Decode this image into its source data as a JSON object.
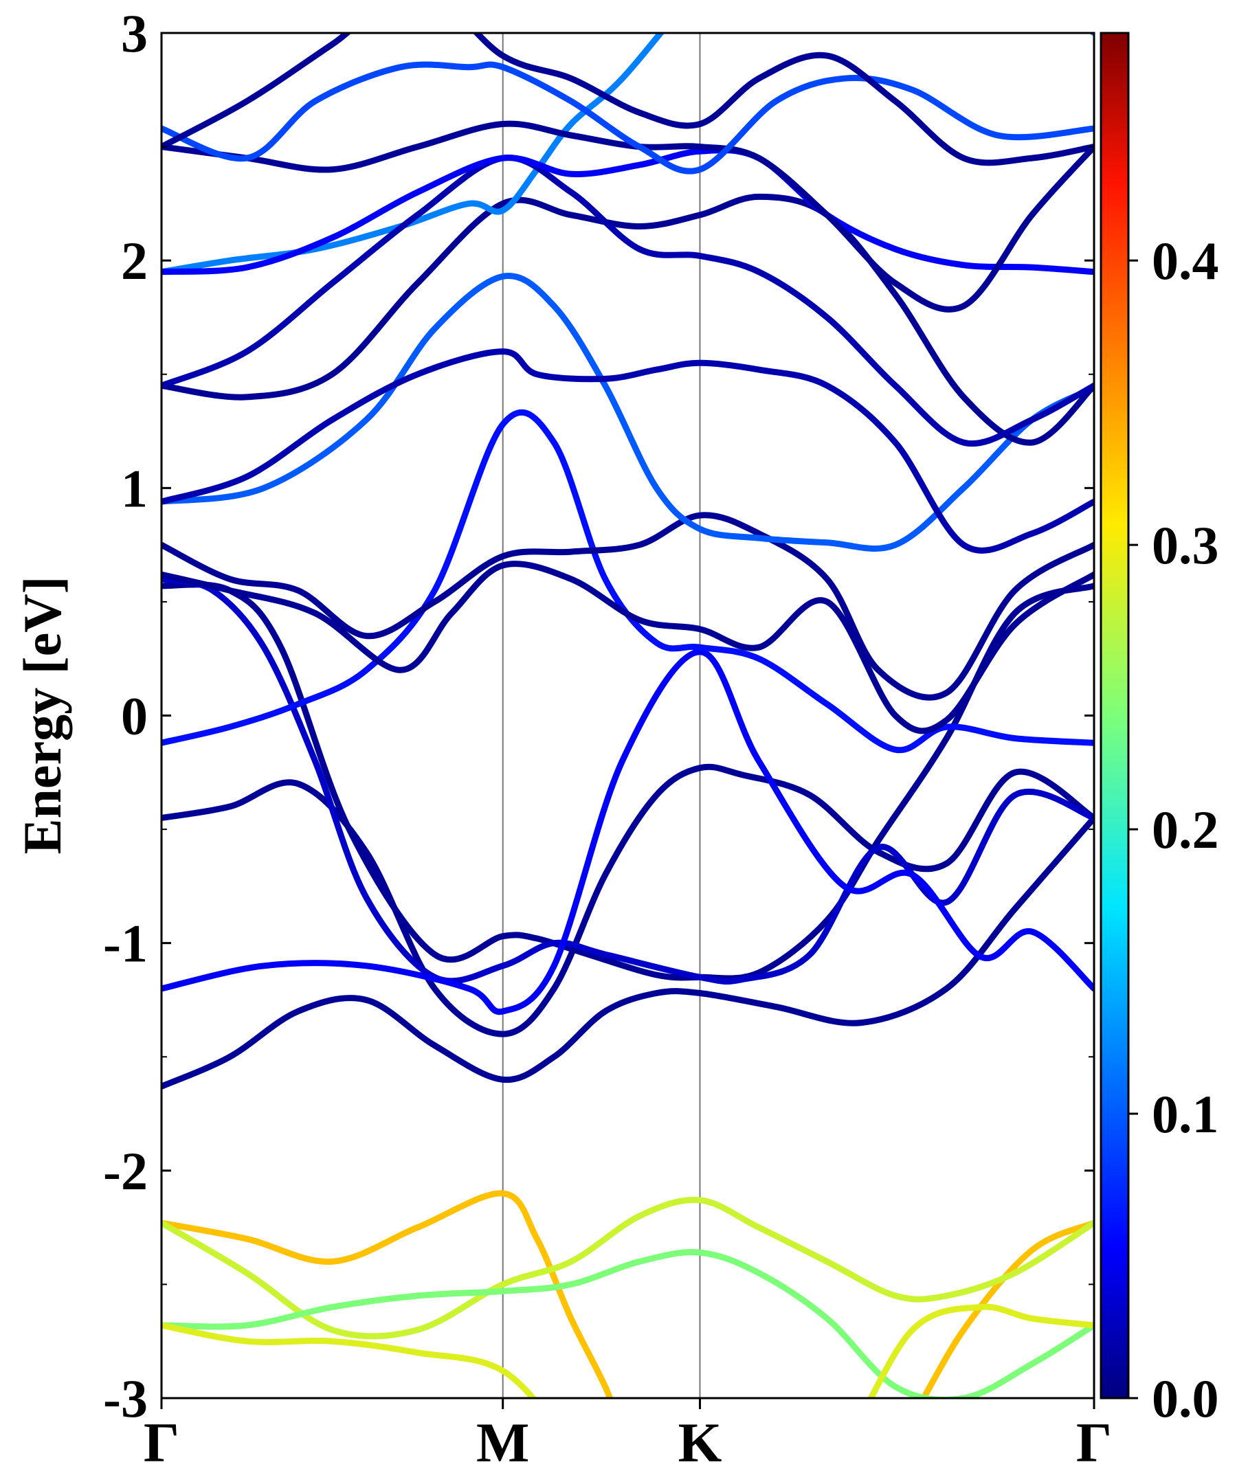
{
  "chart_data": {
    "type": "line",
    "title": "",
    "xlabel": "",
    "ylabel": "Energy [eV]",
    "ylim": [
      -3,
      3
    ],
    "yticks": [
      "-3",
      "-2",
      "-1",
      "0",
      "1",
      "2",
      "3"
    ],
    "x_ticks": [
      {
        "label": "Γ",
        "pos": 0.0
      },
      {
        "label": "M",
        "pos": 1.0
      },
      {
        "label": "K",
        "pos": 1.5774
      },
      {
        "label": "Γ",
        "pos": 2.7321
      }
    ],
    "colorbar": {
      "colormap": "jet",
      "range": [
        0.0,
        0.48
      ],
      "ticks": [
        "0.0",
        "0.1",
        "0.2",
        "0.3",
        "0.4"
      ]
    },
    "grid": false,
    "legend": "none",
    "series": [
      {
        "w": 0.01,
        "x": [
          0,
          0.2,
          0.4,
          0.6,
          0.8,
          1.0,
          1.15,
          1.3,
          1.45,
          1.5774,
          1.8,
          2.05,
          2.3,
          2.5,
          2.7321
        ],
        "y": [
          -1.63,
          -1.5,
          -1.3,
          -1.25,
          -1.45,
          -1.6,
          -1.5,
          -1.3,
          -1.22,
          -1.22,
          -1.28,
          -1.35,
          -1.2,
          -0.85,
          -0.45
        ]
      },
      {
        "w": 0.01,
        "x": [
          0,
          0.2,
          0.4,
          0.6,
          0.8,
          1.0,
          1.15,
          1.3,
          1.45,
          1.5774,
          1.7,
          1.9,
          2.1,
          2.3,
          2.5,
          2.7321
        ],
        "y": [
          -0.45,
          -0.4,
          -0.3,
          -0.6,
          -1.2,
          -1.4,
          -1.2,
          -0.7,
          -0.35,
          -0.23,
          -0.26,
          -0.35,
          -0.6,
          -0.65,
          -0.25,
          -0.45
        ]
      },
      {
        "w": 0.01,
        "x": [
          0,
          0.2,
          0.35,
          0.55,
          0.8,
          1.0,
          1.1,
          1.25,
          1.45,
          1.5774,
          1.75,
          1.95,
          2.1,
          2.3,
          2.5,
          2.7321
        ],
        "y": [
          0.57,
          0.55,
          0.3,
          -0.5,
          -1.05,
          -0.97,
          -0.98,
          -1.05,
          -1.14,
          -1.15,
          -1.13,
          -0.9,
          -0.55,
          -0.1,
          0.45,
          0.57
        ]
      },
      {
        "w": 0.03,
        "x": [
          0,
          0.15,
          0.3,
          0.45,
          0.6,
          0.8,
          1.0,
          1.15,
          1.3,
          1.5774,
          1.7,
          1.9,
          2.1,
          2.3,
          2.5,
          2.7321
        ],
        "y": [
          0.6,
          0.55,
          0.3,
          -0.2,
          -0.8,
          -1.15,
          -1.1,
          -1.0,
          -1.05,
          -1.15,
          -1.16,
          -1.05,
          -0.58,
          -0.82,
          -0.35,
          -0.45
        ]
      },
      {
        "w": 0.05,
        "x": [
          0,
          0.3,
          0.6,
          0.9,
          1.0,
          1.15,
          1.35,
          1.5774,
          1.75,
          2.0,
          2.2,
          2.4,
          2.55,
          2.7321
        ],
        "y": [
          -1.2,
          -1.1,
          -1.1,
          -1.2,
          -1.3,
          -1.1,
          -0.2,
          0.28,
          -0.2,
          -0.75,
          -0.7,
          -1.06,
          -0.95,
          -1.2
        ]
      },
      {
        "w": 0.06,
        "x": [
          0,
          0.2,
          0.4,
          0.6,
          0.8,
          1.0,
          1.15,
          1.3,
          1.45,
          1.5774,
          1.75,
          1.95,
          2.15,
          2.3,
          2.5,
          2.7321
        ],
        "y": [
          -0.12,
          -0.05,
          0.05,
          0.2,
          0.55,
          1.28,
          1.2,
          0.6,
          0.32,
          0.3,
          0.25,
          0.05,
          -0.15,
          -0.05,
          -0.1,
          -0.12
        ]
      },
      {
        "w": 0.01,
        "x": [
          0,
          0.2,
          0.45,
          0.7,
          0.85,
          1.0,
          1.2,
          1.4,
          1.5774,
          1.75,
          1.95,
          2.15,
          2.3,
          2.5,
          2.7321
        ],
        "y": [
          0.62,
          0.55,
          0.45,
          0.2,
          0.45,
          0.66,
          0.6,
          0.42,
          0.38,
          0.3,
          0.5,
          0.0,
          -0.02,
          0.4,
          0.62
        ]
      },
      {
        "w": 0.01,
        "x": [
          0,
          0.2,
          0.4,
          0.6,
          0.8,
          1.0,
          1.2,
          1.4,
          1.5774,
          1.75,
          1.95,
          2.1,
          2.3,
          2.5,
          2.7321
        ],
        "y": [
          0.75,
          0.6,
          0.55,
          0.35,
          0.5,
          0.7,
          0.72,
          0.75,
          0.88,
          0.8,
          0.6,
          0.2,
          0.1,
          0.55,
          0.75
        ]
      },
      {
        "w": 0.1,
        "x": [
          0,
          0.3,
          0.6,
          0.8,
          1.0,
          1.15,
          1.3,
          1.45,
          1.5774,
          1.75,
          1.95,
          2.15,
          2.35,
          2.55,
          2.7321
        ],
        "y": [
          0.94,
          1.0,
          1.3,
          1.7,
          1.93,
          1.8,
          1.45,
          1.0,
          0.82,
          0.78,
          0.76,
          0.75,
          1.0,
          1.3,
          1.44
        ]
      },
      {
        "w": 0.02,
        "x": [
          0,
          0.25,
          0.5,
          0.75,
          1.0,
          1.1,
          1.3,
          1.45,
          1.5774,
          1.75,
          1.95,
          2.15,
          2.35,
          2.55,
          2.7321
        ],
        "y": [
          0.94,
          1.05,
          1.3,
          1.5,
          1.6,
          1.5,
          1.48,
          1.52,
          1.55,
          1.52,
          1.45,
          1.2,
          0.75,
          0.8,
          0.94
        ]
      },
      {
        "w": 0.01,
        "x": [
          0,
          0.25,
          0.5,
          0.75,
          1.0,
          1.2,
          1.4,
          1.5774,
          1.75,
          1.95,
          2.15,
          2.35,
          2.55,
          2.7321
        ],
        "y": [
          1.45,
          1.4,
          1.5,
          1.9,
          2.25,
          2.2,
          2.15,
          2.2,
          2.28,
          2.2,
          1.85,
          1.4,
          1.2,
          1.45
        ]
      },
      {
        "w": 0.12,
        "x": [
          0,
          0.2,
          0.45,
          0.7,
          0.9,
          1.0,
          1.1,
          1.2,
          1.35,
          1.5774,
          1.75,
          1.95,
          2.15,
          2.35,
          2.55,
          2.7321
        ],
        "y": [
          1.95,
          2.0,
          2.05,
          2.15,
          2.25,
          2.22,
          2.4,
          2.6,
          2.8,
          3.2,
          3.4,
          3.5,
          3.5,
          3.4,
          3.2,
          3.0
        ]
      },
      {
        "w": 0.02,
        "x": [
          0,
          0.25,
          0.5,
          0.75,
          1.0,
          1.2,
          1.4,
          1.5774,
          1.75,
          1.95,
          2.15,
          2.35,
          2.55,
          2.7321
        ],
        "y": [
          1.45,
          1.6,
          1.9,
          2.2,
          2.45,
          2.3,
          2.05,
          2.02,
          1.95,
          1.75,
          1.45,
          1.2,
          1.3,
          1.45
        ]
      },
      {
        "w": 0.05,
        "x": [
          0,
          0.25,
          0.5,
          0.75,
          1.0,
          1.2,
          1.4,
          1.5774,
          1.75,
          1.95,
          2.15,
          2.35,
          2.55,
          2.7321
        ],
        "y": [
          1.95,
          1.97,
          2.1,
          2.3,
          2.45,
          2.38,
          2.42,
          2.48,
          2.45,
          2.2,
          2.05,
          1.98,
          1.97,
          1.95
        ]
      },
      {
        "w": 0.01,
        "x": [
          0,
          0.25,
          0.5,
          0.75,
          1.0,
          1.2,
          1.4,
          1.5774,
          1.75,
          1.95,
          2.15,
          2.35,
          2.55,
          2.7321
        ],
        "y": [
          2.5,
          2.45,
          2.4,
          2.5,
          2.6,
          2.55,
          2.5,
          2.5,
          2.45,
          2.2,
          1.9,
          1.8,
          2.2,
          2.5
        ]
      },
      {
        "w": 0.09,
        "x": [
          0,
          0.25,
          0.45,
          0.7,
          0.9,
          1.0,
          1.2,
          1.4,
          1.5774,
          1.8,
          2.0,
          2.2,
          2.45,
          2.7321
        ],
        "y": [
          2.58,
          2.45,
          2.7,
          2.85,
          2.85,
          2.85,
          2.7,
          2.5,
          2.4,
          2.7,
          2.8,
          2.75,
          2.55,
          2.58
        ]
      },
      {
        "w": 0.01,
        "x": [
          0,
          0.25,
          0.5,
          0.75,
          1.0,
          1.2,
          1.4,
          1.5774,
          1.75,
          1.95,
          2.15,
          2.35,
          2.55,
          2.7321
        ],
        "y": [
          2.5,
          2.7,
          2.95,
          3.2,
          2.9,
          2.8,
          2.65,
          2.6,
          2.8,
          2.9,
          2.7,
          2.45,
          2.45,
          2.5
        ]
      },
      {
        "w": 0.33,
        "x": [
          0,
          0.25,
          0.5,
          0.75,
          1.0,
          1.1,
          1.2,
          1.3,
          1.4,
          1.5774,
          1.75,
          1.95,
          2.15,
          2.35,
          2.55,
          2.7321
        ],
        "y": [
          -2.23,
          -2.3,
          -2.4,
          -2.25,
          -2.1,
          -2.3,
          -2.65,
          -2.95,
          -3.3,
          -3.5,
          -3.5,
          -3.5,
          -3.2,
          -2.7,
          -2.35,
          -2.23
        ]
      },
      {
        "w": 0.28,
        "x": [
          0,
          0.25,
          0.5,
          0.75,
          1.0,
          1.2,
          1.4,
          1.5774,
          1.75,
          1.95,
          2.15,
          2.3,
          2.5,
          2.7321
        ],
        "y": [
          -2.23,
          -2.45,
          -2.7,
          -2.7,
          -2.5,
          -2.4,
          -2.2,
          -2.13,
          -2.25,
          -2.4,
          -2.55,
          -2.55,
          -2.45,
          -2.23
        ]
      },
      {
        "w": 0.24,
        "x": [
          0,
          0.25,
          0.5,
          0.75,
          1.0,
          1.2,
          1.4,
          1.5774,
          1.75,
          1.95,
          2.15,
          2.35,
          2.55,
          2.7321
        ],
        "y": [
          -2.68,
          -2.68,
          -2.6,
          -2.55,
          -2.53,
          -2.5,
          -2.4,
          -2.36,
          -2.45,
          -2.65,
          -2.95,
          -3.0,
          -2.85,
          -2.68
        ]
      },
      {
        "w": 0.29,
        "x": [
          0,
          0.25,
          0.5,
          0.75,
          1.0,
          1.2,
          1.4,
          1.6,
          1.8,
          2.0,
          2.2,
          2.4,
          2.55,
          2.7321
        ],
        "y": [
          -2.68,
          -2.75,
          -2.75,
          -2.8,
          -2.88,
          -3.2,
          -3.5,
          -3.6,
          -3.5,
          -3.2,
          -2.7,
          -2.6,
          -2.65,
          -2.68
        ]
      }
    ]
  }
}
